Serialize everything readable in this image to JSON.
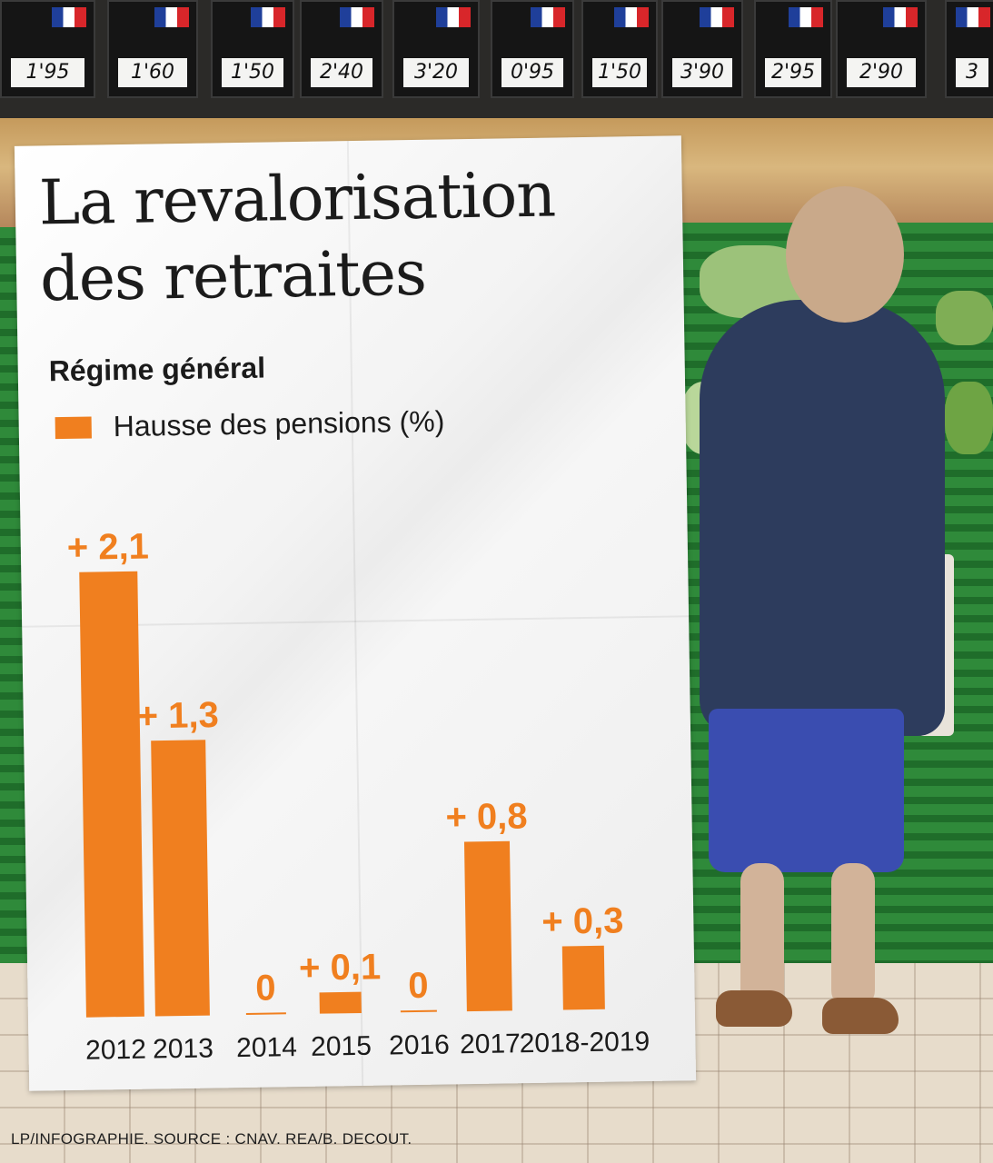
{
  "title": "La revalorisation des retraites",
  "subtitle": "Régime général",
  "legend_label": "Hausse des pensions (%)",
  "credit": "LP/INFOGRAPHIE.   SOURCE : CNAV.   REA/B. DECOUT.",
  "colors": {
    "bar": "#f07f1f",
    "text": "#1b1b1b"
  },
  "price_tags": [
    "1'95",
    "1'60",
    "1'50",
    "2'40",
    "3'20",
    "0'95",
    "1'50",
    "3'90",
    "2'95",
    "2'90",
    "3"
  ],
  "chart_data": {
    "type": "bar",
    "title": "La revalorisation des retraites",
    "subtitle": "Régime général",
    "categories": [
      "2012",
      "2013",
      "2014",
      "2015",
      "2016",
      "2017",
      "2018-2019"
    ],
    "series": [
      {
        "name": "Hausse des pensions (%)",
        "values": [
          2.1,
          1.3,
          0,
          0.1,
          0,
          0.8,
          0.3
        ]
      }
    ],
    "value_labels": [
      "+ 2,1",
      "+ 1,3",
      "0",
      "+ 0,1",
      "0",
      "+ 0,8",
      "+ 0,3"
    ],
    "ylim": [
      0,
      2.1
    ],
    "grid": false,
    "legend": "top-left"
  }
}
